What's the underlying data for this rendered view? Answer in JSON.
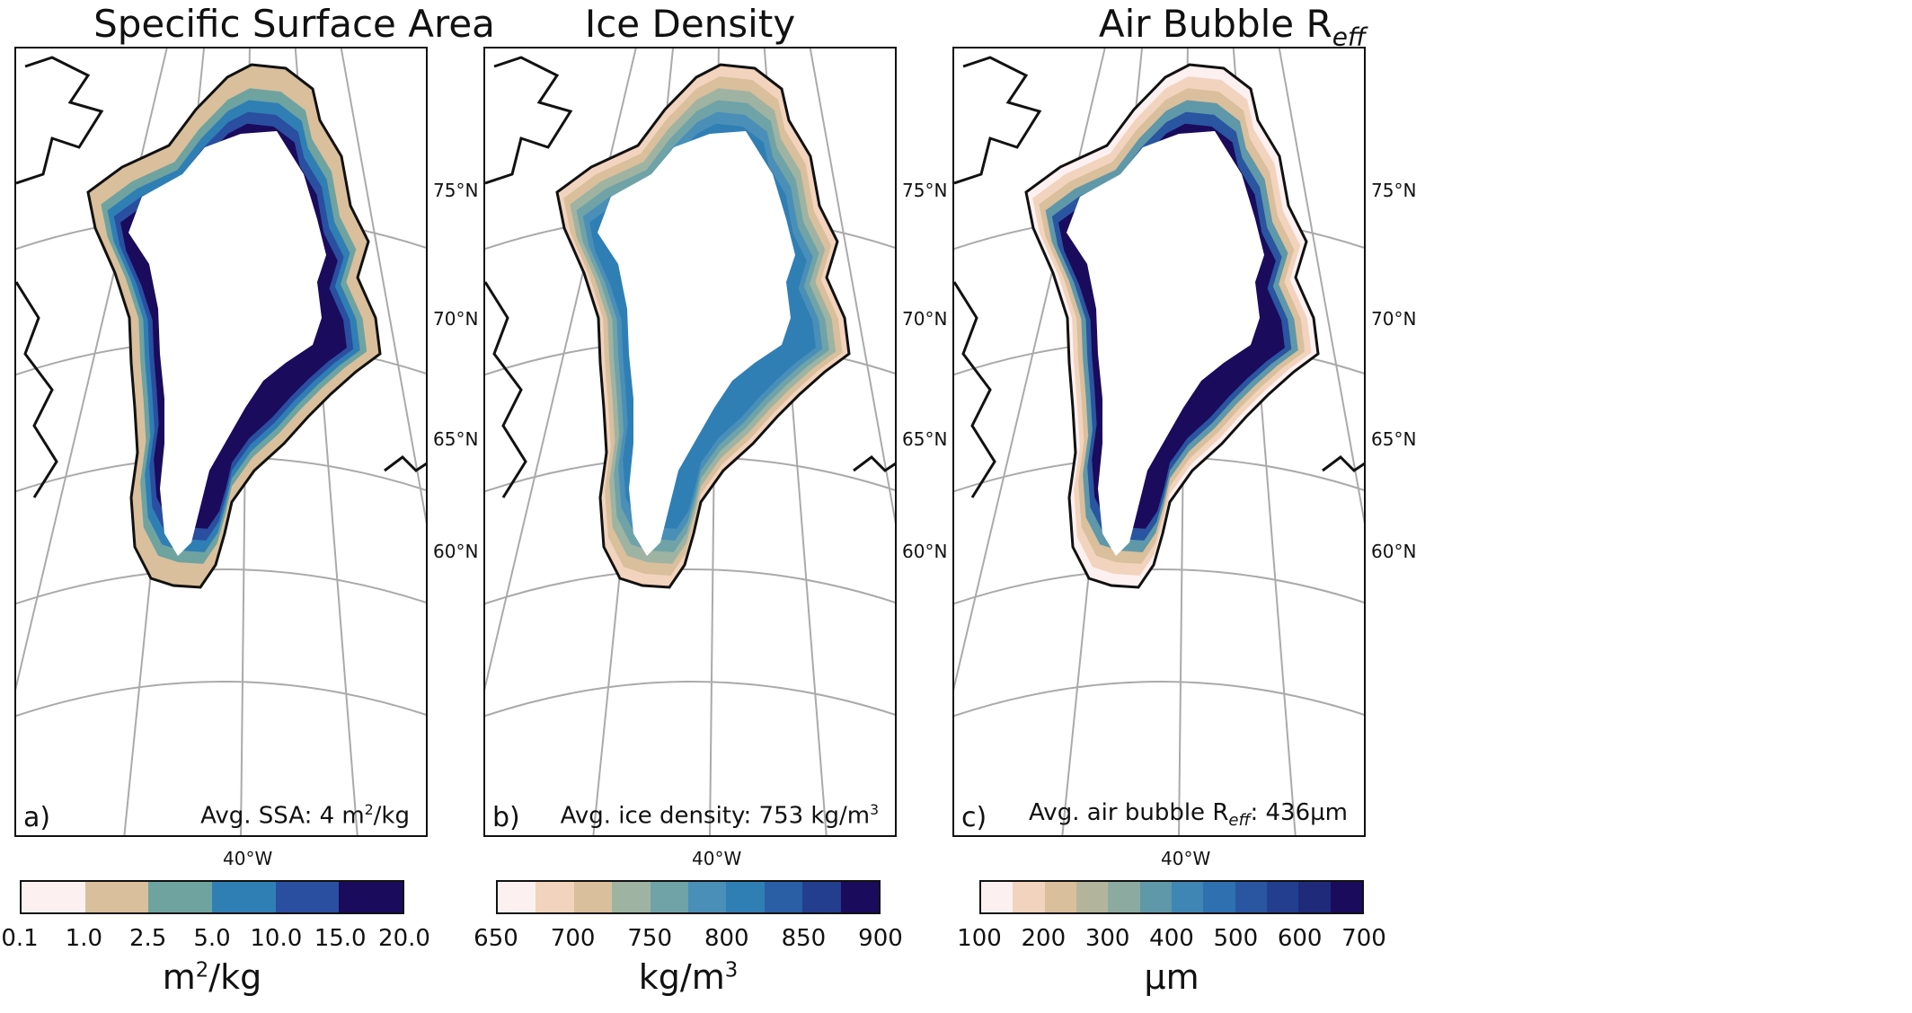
{
  "panels": [
    {
      "title": "Specific Surface Area",
      "letter": "a)",
      "avg_label": "Avg. SSA: ",
      "avg_value": "4 m",
      "avg_sup": "2",
      "avg_suffix": "/kg",
      "lat_labels": [
        "75°N",
        "70°N",
        "65°N",
        "60°N"
      ],
      "lon_label": "40°W",
      "colorbar": {
        "ticks": [
          "0.1",
          "1.0",
          "2.5",
          "5.0",
          "10.0",
          "15.0",
          "20.0"
        ],
        "colors": [
          "#fdf0f0",
          "#d9bf9c",
          "#6fa3a0",
          "#2f7fb5",
          "#2a4fa0",
          "#1a0b5c"
        ],
        "unit_base": "m",
        "unit_sup": "2",
        "unit_suffix": "/kg"
      },
      "rim_colors": [
        "#d9bf9c",
        "#d9bf9c",
        "#6fa3a0",
        "#2f7fb5",
        "#2a4fa0",
        "#1a0b5c"
      ]
    },
    {
      "title": "Ice Density",
      "letter": "b)",
      "avg_label": "Avg. ice density: ",
      "avg_value": "753 kg/m",
      "avg_sup": "3",
      "avg_suffix": "",
      "lat_labels": [
        "75°N",
        "70°N",
        "65°N",
        "60°N"
      ],
      "lon_label": "40°W",
      "colorbar": {
        "ticks": [
          "650",
          "700",
          "750",
          "800",
          "850",
          "900"
        ],
        "colors": [
          "#fdf0f0",
          "#f2d3bd",
          "#d9bf9c",
          "#9fb3a2",
          "#6fa3a8",
          "#4a8fb8",
          "#2f7fb5",
          "#2a5fa5",
          "#233e8f",
          "#1a0b5c"
        ],
        "unit_base": "kg/m",
        "unit_sup": "3",
        "unit_suffix": ""
      },
      "rim_colors": [
        "#f2d3bd",
        "#d9bf9c",
        "#9fb3a2",
        "#6fa3a8",
        "#4a8fb8",
        "#2f7fb5"
      ]
    },
    {
      "title": "Air Bubble R",
      "title_sub": "eff",
      "letter": "c)",
      "avg_label": "Avg. air bubble R",
      "avg_sub": "eff",
      "avg_value": ": 436µm",
      "lat_labels": [
        "75°N",
        "70°N",
        "65°N",
        "60°N"
      ],
      "lon_label": "40°W",
      "colorbar": {
        "ticks": [
          "100",
          "200",
          "300",
          "400",
          "500",
          "600",
          "700"
        ],
        "colors": [
          "#fdf0f0",
          "#f2d3bd",
          "#d9bf9c",
          "#b2b59c",
          "#8caaa0",
          "#5f98a8",
          "#3f86b4",
          "#2f70b0",
          "#2a55a0",
          "#233e8f",
          "#1f2a7a",
          "#1a0b5c"
        ],
        "unit_base": "µm"
      },
      "rim_colors": [
        "#fdf0f0",
        "#f2d3bd",
        "#d9bf9c",
        "#5f98a8",
        "#2a55a0",
        "#1a0b5c"
      ]
    }
  ]
}
